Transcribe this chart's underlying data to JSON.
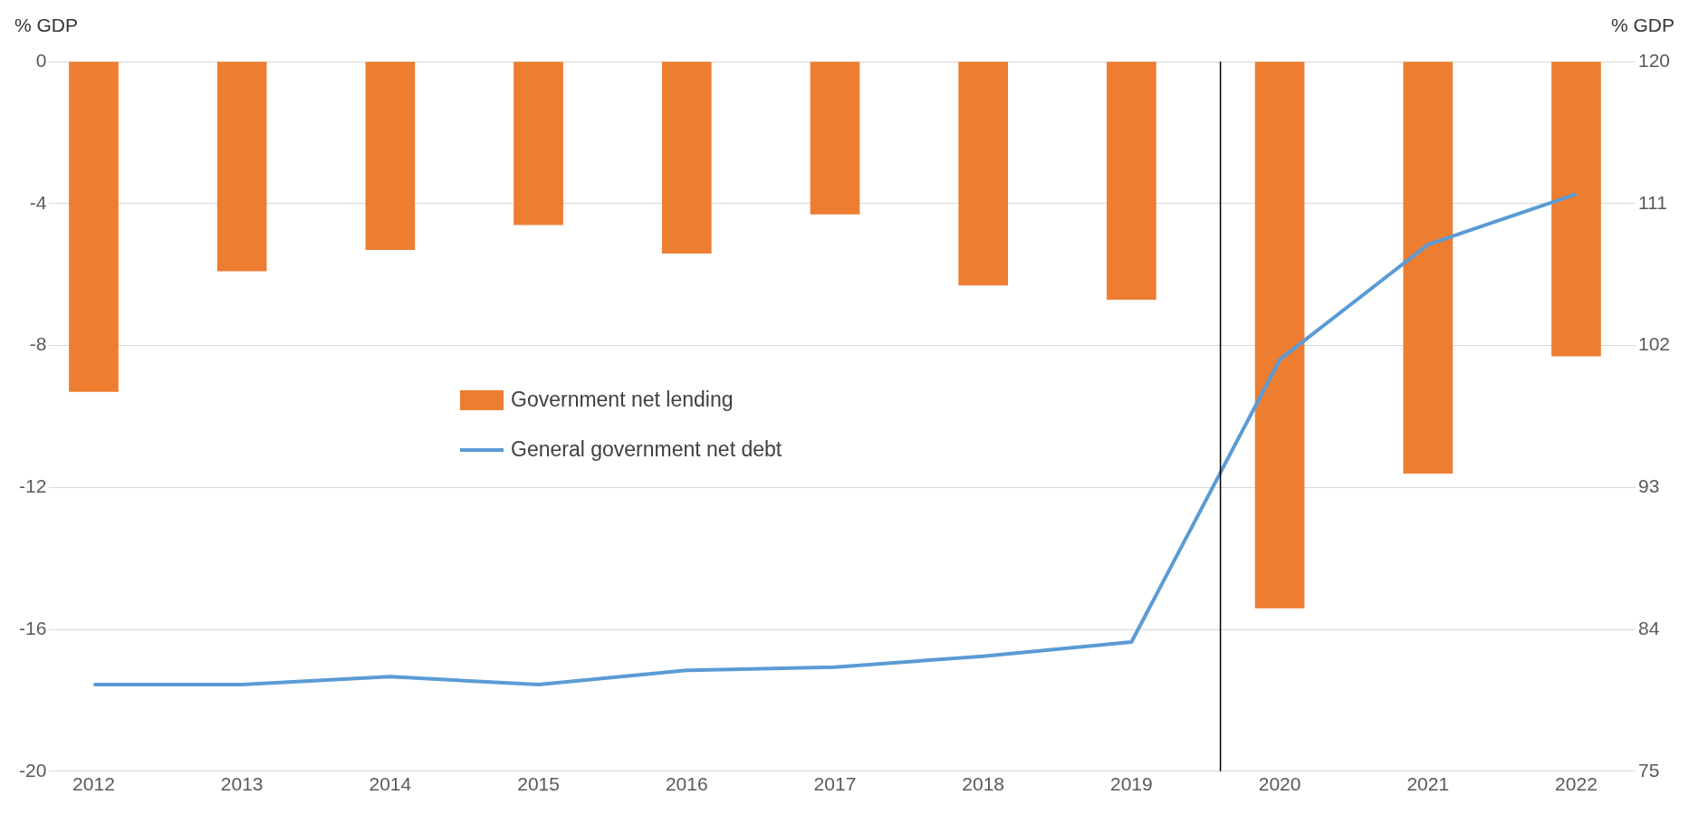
{
  "chart_data": {
    "type": "bar",
    "ylabel": "% GDP",
    "y2label": "% GDP",
    "x": [
      2012,
      2013,
      2014,
      2015,
      2016,
      2017,
      2018,
      2019,
      2020,
      2021,
      2022
    ],
    "xlim": [
      2011.7,
      2022.4
    ],
    "xticks": [
      2012,
      2013,
      2014,
      2015,
      2016,
      2017,
      2018,
      2019,
      2020,
      2021,
      2022
    ],
    "ylim": [
      -20,
      0
    ],
    "yticks": [
      -20,
      -16,
      -12,
      -8,
      -4,
      0
    ],
    "y2lim": [
      75,
      120
    ],
    "y2ticks": [
      75,
      84,
      93,
      102,
      111,
      120
    ],
    "series": [
      {
        "name": "Government net lending",
        "color": "#ed7d31",
        "values": [
          -9.3,
          -5.9,
          -5.3,
          -4.6,
          -5.4,
          -4.3,
          -6.3,
          -6.7,
          -15.4,
          -11.6,
          -8.3
        ]
      },
      {
        "name": "General government net debt",
        "type": "line",
        "axis": "y2",
        "color": "#5b9bd5",
        "values": [
          80.5,
          80.5,
          81.0,
          80.5,
          81.4,
          81.6,
          82.3,
          83.2,
          101.1,
          108.4,
          111.6
        ]
      }
    ],
    "ref_lines": [
      {
        "axis": "x",
        "value": 2019.6,
        "color": "#000000"
      }
    ],
    "grid": "y",
    "legend": "left"
  }
}
